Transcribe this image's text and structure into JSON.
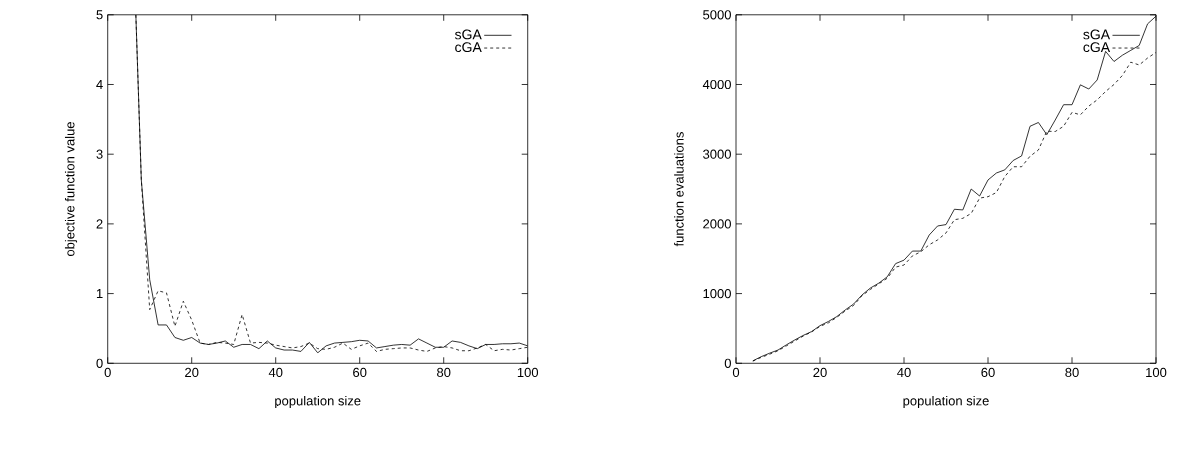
{
  "chart_data": [
    {
      "type": "line",
      "xlabel": "population size",
      "ylabel": "objective function value",
      "xlim": [
        0,
        100
      ],
      "ylim": [
        0,
        5
      ],
      "xticks": [
        0,
        20,
        40,
        60,
        80,
        100
      ],
      "yticks": [
        0,
        1,
        2,
        3,
        4,
        5
      ],
      "legend": "top right",
      "x": [
        6.7,
        8,
        10,
        12,
        14,
        16,
        18,
        20,
        22,
        24,
        26,
        28,
        30,
        32,
        34,
        36,
        38,
        40,
        42,
        44,
        46,
        48,
        50,
        52,
        54,
        56,
        58,
        60,
        62,
        64,
        66,
        68,
        70,
        72,
        74,
        76,
        78,
        80,
        82,
        84,
        86,
        88,
        90,
        92,
        94,
        96,
        98,
        100
      ],
      "series": [
        {
          "name": "sGA",
          "color": "#000000",
          "line_style": "solid",
          "values": [
            5,
            2.63,
            1.2,
            0.55,
            0.55,
            0.37,
            0.33,
            0.37,
            0.29,
            0.27,
            0.29,
            0.32,
            0.23,
            0.27,
            0.27,
            0.21,
            0.32,
            0.22,
            0.19,
            0.19,
            0.17,
            0.3,
            0.15,
            0.25,
            0.29,
            0.3,
            0.31,
            0.33,
            0.32,
            0.22,
            0.24,
            0.26,
            0.27,
            0.26,
            0.35,
            0.29,
            0.23,
            0.23,
            0.32,
            0.3,
            0.25,
            0.21,
            0.27,
            0.27,
            0.28,
            0.28,
            0.29,
            0.25
          ]
        },
        {
          "name": "cGA",
          "color": "#000000",
          "line_style": "dashed",
          "values": [
            5,
            2.63,
            0.77,
            1.04,
            1.01,
            0.53,
            0.89,
            0.62,
            0.29,
            0.27,
            0.3,
            0.29,
            0.27,
            0.7,
            0.29,
            0.3,
            0.29,
            0.26,
            0.24,
            0.22,
            0.24,
            0.29,
            0.21,
            0.2,
            0.23,
            0.29,
            0.2,
            0.25,
            0.29,
            0.17,
            0.2,
            0.21,
            0.22,
            0.22,
            0.19,
            0.17,
            0.22,
            0.24,
            0.22,
            0.18,
            0.18,
            0.22,
            0.27,
            0.18,
            0.2,
            0.19,
            0.21,
            0.23
          ]
        }
      ]
    },
    {
      "type": "line",
      "xlabel": "population size",
      "ylabel": "function evaluations",
      "xlim": [
        0,
        100
      ],
      "ylim": [
        0,
        5000
      ],
      "xticks": [
        0,
        20,
        40,
        60,
        80,
        100
      ],
      "yticks": [
        0,
        1000,
        2000,
        3000,
        4000,
        5000
      ],
      "legend": "top right",
      "x": [
        4,
        6,
        8,
        10,
        12,
        14,
        16,
        18,
        20,
        22,
        24,
        26,
        28,
        30,
        32,
        34,
        36,
        38,
        40,
        42,
        44,
        46,
        48,
        50,
        52,
        54,
        56,
        58,
        60,
        62,
        64,
        66,
        68,
        70,
        72,
        74,
        76,
        78,
        80,
        82,
        84,
        86,
        88,
        90,
        92,
        94,
        96,
        98,
        100
      ],
      "series": [
        {
          "name": "sGA",
          "color": "#000000",
          "line_style": "solid",
          "values": [
            35,
            95,
            145,
            190,
            265,
            335,
            400,
            455,
            540,
            600,
            670,
            765,
            850,
            980,
            1080,
            1150,
            1240,
            1430,
            1480,
            1610,
            1610,
            1840,
            1970,
            1990,
            2210,
            2200,
            2500,
            2400,
            2630,
            2730,
            2775,
            2910,
            2975,
            3400,
            3455,
            3280,
            3490,
            3710,
            3710,
            3995,
            3935,
            4065,
            4475,
            4330,
            4420,
            4490,
            4560,
            4870,
            4980
          ]
        },
        {
          "name": "cGA",
          "color": "#000000",
          "line_style": "dashed",
          "values": [
            30,
            85,
            130,
            180,
            250,
            320,
            390,
            450,
            530,
            580,
            660,
            750,
            830,
            970,
            1060,
            1140,
            1220,
            1380,
            1410,
            1540,
            1600,
            1700,
            1770,
            1870,
            2060,
            2080,
            2150,
            2370,
            2390,
            2450,
            2680,
            2820,
            2820,
            2970,
            3060,
            3330,
            3325,
            3400,
            3600,
            3565,
            3690,
            3780,
            3900,
            4000,
            4130,
            4320,
            4280,
            4380,
            4460
          ]
        }
      ]
    }
  ]
}
